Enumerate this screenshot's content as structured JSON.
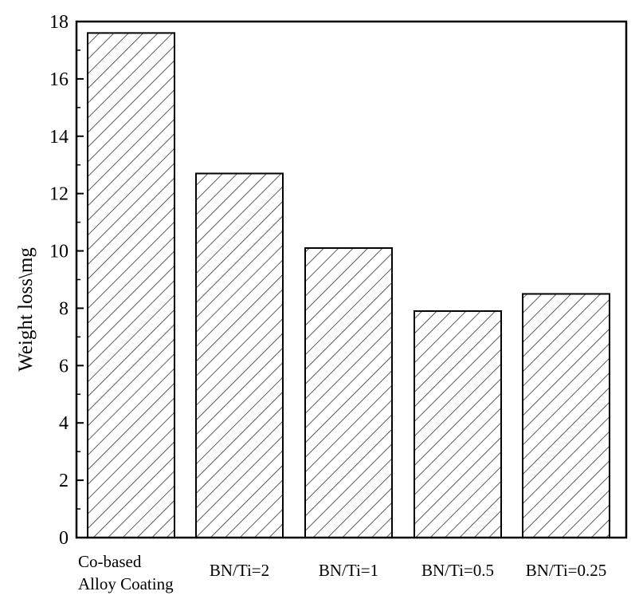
{
  "chart_data": {
    "type": "bar",
    "ylabel": "Weight loss\\mg",
    "xlabel": "",
    "ylim": [
      0,
      18
    ],
    "yticks": [
      0,
      2,
      4,
      6,
      8,
      10,
      12,
      14,
      16,
      18
    ],
    "categories": [
      [
        "Co-based",
        "Alloy Coating"
      ],
      [
        "BN/Ti=2"
      ],
      [
        "BN/Ti=1"
      ],
      [
        "BN/Ti=0.5"
      ],
      [
        "BN/Ti=0.25"
      ]
    ],
    "values": [
      17.6,
      12.7,
      10.1,
      7.9,
      8.5
    ],
    "bar_fill": "hatched",
    "colors": {
      "bar_stroke": "#000000",
      "hatch": "#333333",
      "axis": "#000000"
    },
    "grid": false
  }
}
